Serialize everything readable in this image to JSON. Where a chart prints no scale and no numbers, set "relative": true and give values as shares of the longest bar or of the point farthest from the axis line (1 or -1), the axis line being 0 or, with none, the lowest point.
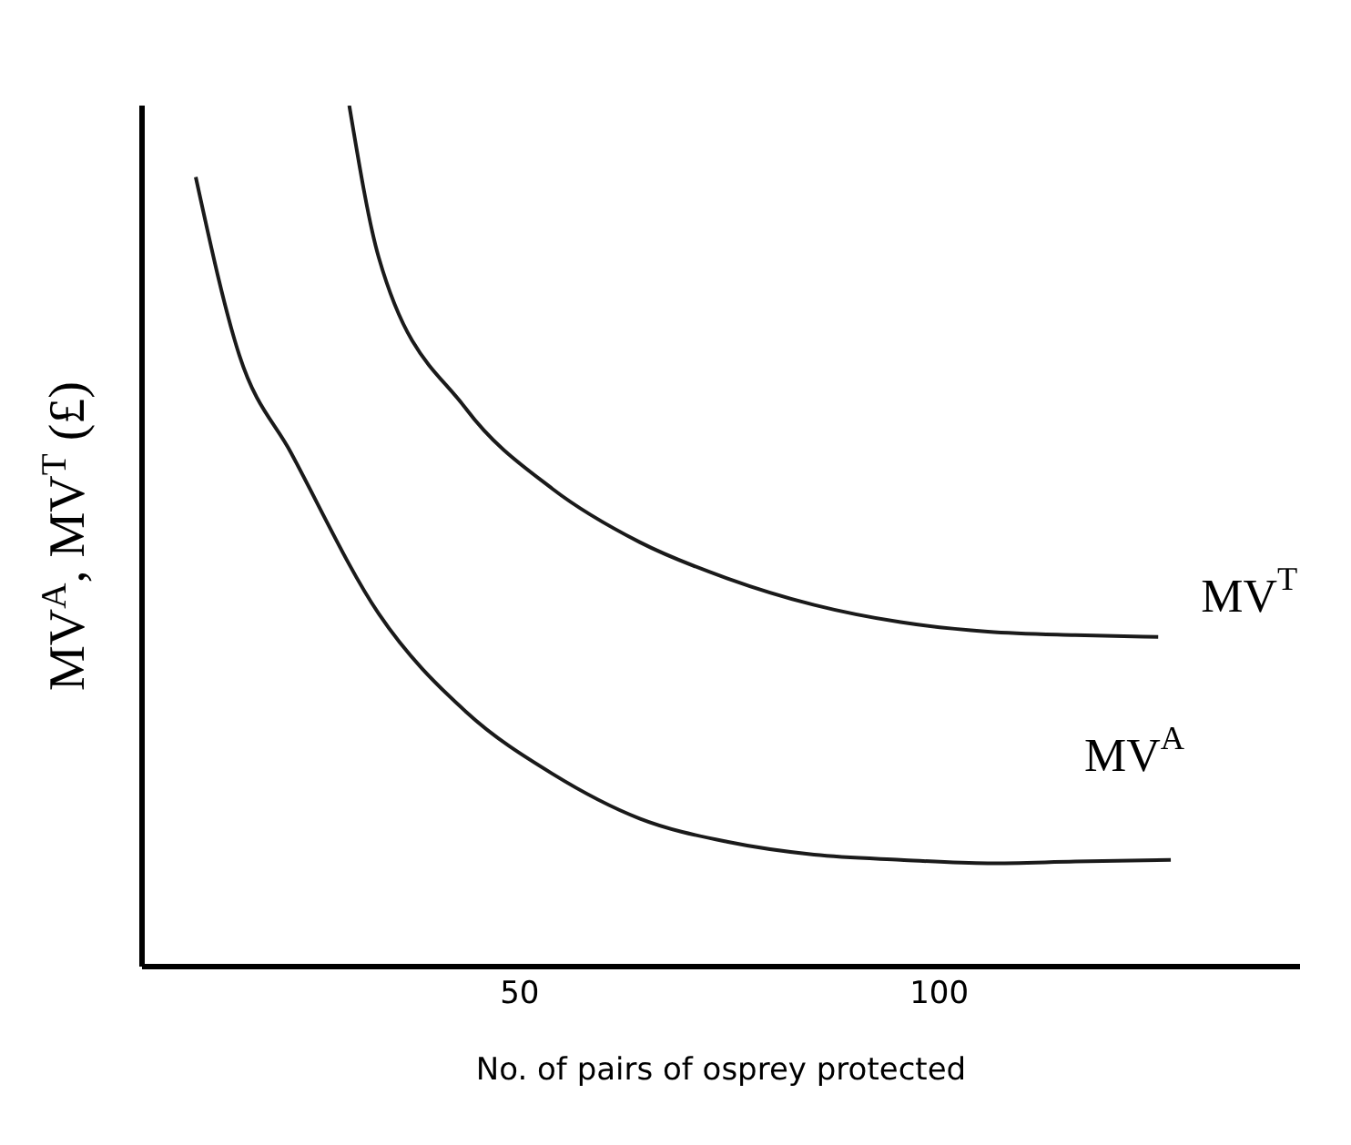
{
  "chart_data": {
    "type": "line",
    "relative": true,
    "xlabel": "No. of pairs of osprey protected",
    "ylabel": "MV$^{A}$, MV$^{T}$ (£)",
    "xlim": [
      5,
      143
    ],
    "xticks": [
      50,
      100
    ],
    "grid": false,
    "legend": false,
    "marker": "none",
    "line_style": "solid",
    "series": [
      {
        "name": "MV$^{A}$",
        "color": "#1a1a1a",
        "x": [
          11.4,
          16.6,
          22.8,
          33.2,
          43.6,
          53.9,
          64.3,
          74.7,
          85.1,
          95.4,
          105.8,
          116.2,
          127.6
        ],
        "values": [
          0.917,
          0.71,
          0.596,
          0.41,
          0.296,
          0.224,
          0.172,
          0.145,
          0.13,
          0.124,
          0.12,
          0.122,
          0.124
        ]
      },
      {
        "name": "MV$^{T}$",
        "color": "#1a1a1a",
        "x": [
          29.7,
          33.2,
          43.6,
          53.9,
          64.3,
          74.7,
          85.1,
          95.4,
          105.8,
          116.2,
          126.1
        ],
        "values": [
          1,
          0.824,
          0.648,
          0.555,
          0.493,
          0.451,
          0.42,
          0.4,
          0.389,
          0.385,
          0.383
        ]
      }
    ]
  }
}
